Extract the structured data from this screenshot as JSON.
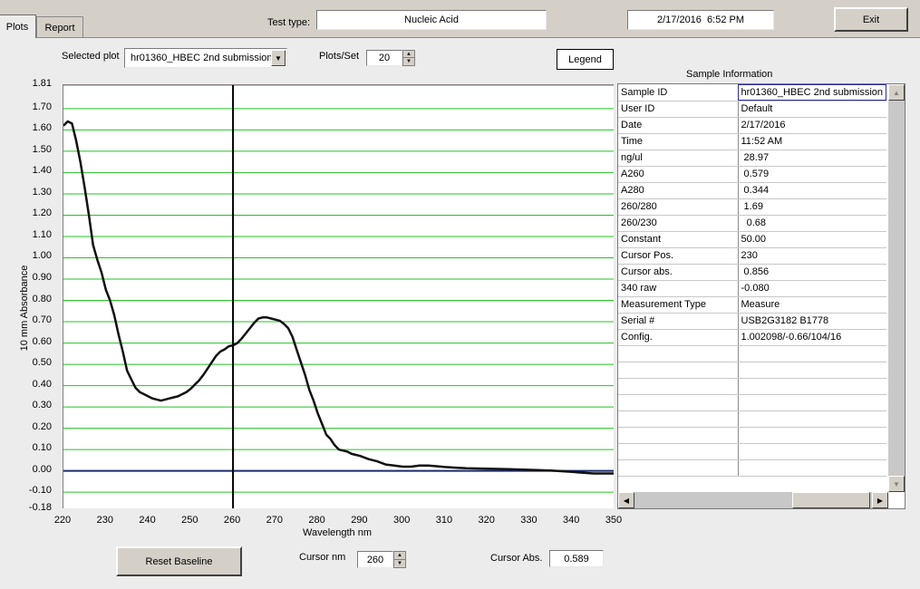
{
  "tabs": [
    {
      "label": "Plots",
      "active": true
    },
    {
      "label": "Report",
      "active": false
    }
  ],
  "header": {
    "test_type_label": "Test type:",
    "test_type_value": "Nucleic Acid",
    "datetime": "2/17/2016  6:52 PM",
    "exit_label": "Exit"
  },
  "controls": {
    "selected_plot_label": "Selected plot",
    "selected_plot_value": "hr01360_HBEC 2nd submission",
    "plots_per_set_label": "Plots/Set",
    "plots_per_set_value": "20",
    "legend_label": "Legend",
    "reset_baseline_label": "Reset Baseline",
    "cursor_nm_label": "Cursor nm",
    "cursor_nm_value": "260",
    "cursor_abs_label": "Cursor Abs.",
    "cursor_abs_value": "0.589"
  },
  "sample_info": {
    "title": "Sample Information",
    "rows": [
      {
        "key": "Sample ID",
        "value": "hr01360_HBEC 2nd submission"
      },
      {
        "key": "User ID",
        "value": "Default"
      },
      {
        "key": "Date",
        "value": "2/17/2016"
      },
      {
        "key": "Time",
        "value": "11:52 AM"
      },
      {
        "key": "ng/ul",
        "value": " 28.97"
      },
      {
        "key": "A260",
        "value": " 0.579"
      },
      {
        "key": "A280",
        "value": " 0.344"
      },
      {
        "key": "260/280",
        "value": " 1.69"
      },
      {
        "key": "260/230",
        "value": "  0.68"
      },
      {
        "key": "Constant",
        "value": "50.00"
      },
      {
        "key": "Cursor Pos.",
        "value": "230"
      },
      {
        "key": "Cursor abs.",
        "value": " 0.856"
      },
      {
        "key": "340 raw",
        "value": "-0.080"
      },
      {
        "key": "Measurement Type",
        "value": "Measure"
      },
      {
        "key": "Serial #",
        "value": "USB2G3182 B1778"
      },
      {
        "key": "Config.",
        "value": "1.002098/-0.66/104/16"
      }
    ],
    "empty_rows": 8
  },
  "chart_data": {
    "type": "line",
    "xlabel": "Wavelength nm",
    "ylabel": "10 mm Absorbance",
    "xlim": [
      220,
      350
    ],
    "ylim": [
      -0.18,
      1.81
    ],
    "x_ticks": [
      "220",
      "230",
      "240",
      "250",
      "260",
      "270",
      "280",
      "290",
      "300",
      "310",
      "320",
      "330",
      "340",
      "350"
    ],
    "y_ticks": [
      "1.81",
      "1.70",
      "1.60",
      "1.50",
      "1.40",
      "1.30",
      "1.20",
      "1.10",
      "1.00",
      "0.90",
      "0.80",
      "0.70",
      "0.60",
      "0.50",
      "0.40",
      "0.30",
      "0.20",
      "0.10",
      "0.00",
      "-0.10",
      "-0.18"
    ],
    "grid": true,
    "grid_color": "#22c422",
    "line_color": "#111111",
    "baseline_color": "#1c2a6e",
    "cursor_x": 260,
    "series": [
      {
        "x": [
          220,
          221,
          222,
          223,
          224,
          225,
          226,
          227,
          228,
          229,
          230,
          231,
          232,
          233,
          234,
          235,
          236,
          237,
          238,
          239,
          240,
          241,
          242,
          243,
          244,
          245,
          246,
          247,
          248,
          249,
          250,
          251,
          252,
          253,
          254,
          255,
          256,
          257,
          258,
          259,
          260,
          261,
          262,
          263,
          264,
          265,
          266,
          267,
          268,
          269,
          270,
          271,
          272,
          273,
          274,
          275,
          276,
          277,
          278,
          279,
          280,
          281,
          282,
          283,
          284,
          285,
          286,
          287,
          288,
          289,
          290,
          292,
          294,
          296,
          298,
          300,
          302,
          304,
          306,
          308,
          310,
          315,
          320,
          325,
          330,
          335,
          340,
          345,
          350
        ],
        "y": [
          1.62,
          1.64,
          1.63,
          1.55,
          1.45,
          1.33,
          1.2,
          1.06,
          0.99,
          0.93,
          0.85,
          0.8,
          0.73,
          0.64,
          0.56,
          0.47,
          0.43,
          0.39,
          0.37,
          0.36,
          0.35,
          0.34,
          0.335,
          0.33,
          0.335,
          0.34,
          0.345,
          0.35,
          0.36,
          0.37,
          0.385,
          0.405,
          0.425,
          0.45,
          0.48,
          0.51,
          0.54,
          0.56,
          0.57,
          0.585,
          0.589,
          0.6,
          0.62,
          0.645,
          0.67,
          0.695,
          0.715,
          0.72,
          0.72,
          0.715,
          0.71,
          0.705,
          0.69,
          0.67,
          0.63,
          0.57,
          0.51,
          0.45,
          0.38,
          0.33,
          0.27,
          0.22,
          0.17,
          0.15,
          0.12,
          0.1,
          0.095,
          0.09,
          0.08,
          0.075,
          0.07,
          0.055,
          0.045,
          0.03,
          0.025,
          0.02,
          0.02,
          0.025,
          0.025,
          0.022,
          0.018,
          0.012,
          0.01,
          0.008,
          0.005,
          0.002,
          -0.005,
          -0.012,
          -0.012
        ]
      }
    ]
  }
}
